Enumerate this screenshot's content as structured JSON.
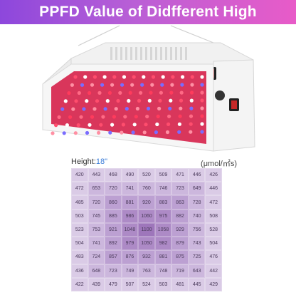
{
  "banner": {
    "title": "PPFD Value of Didfferent High"
  },
  "table": {
    "height_label": "Height:",
    "height_value": "18\"",
    "unit": "(μmol/㎡s)",
    "rows": [
      [
        "420",
        "443",
        "468",
        "490",
        "520",
        "509",
        "471",
        "446",
        "426"
      ],
      [
        "472",
        "653",
        "720",
        "741",
        "760",
        "746",
        "723",
        "649",
        "446"
      ],
      [
        "485",
        "720",
        "860",
        "881",
        "920",
        "883",
        "863",
        "728",
        "472"
      ],
      [
        "503",
        "745",
        "885",
        "986",
        "1060",
        "975",
        "882",
        "740",
        "508"
      ],
      [
        "523",
        "753",
        "921",
        "1048",
        "1100",
        "1058",
        "929",
        "756",
        "528"
      ],
      [
        "504",
        "741",
        "892",
        "979",
        "1050",
        "982",
        "879",
        "743",
        "504"
      ],
      [
        "483",
        "724",
        "857",
        "876",
        "932",
        "881",
        "875",
        "725",
        "476"
      ],
      [
        "436",
        "648",
        "723",
        "749",
        "763",
        "748",
        "719",
        "643",
        "442"
      ],
      [
        "422",
        "439",
        "479",
        "507",
        "524",
        "503",
        "481",
        "445",
        "429"
      ]
    ]
  },
  "colors": {
    "banner_start": "#8d47dc",
    "banner_end": "#e85bc8",
    "height_value": "#3a7cd8",
    "ring_outer": "#dacbe6",
    "ring_center": "#9e76bb",
    "led_red": "#ff3b5c",
    "led_blue": "#5a6cff"
  },
  "icons": [
    "led-grow-light-icon",
    "power-switch-icon"
  ]
}
